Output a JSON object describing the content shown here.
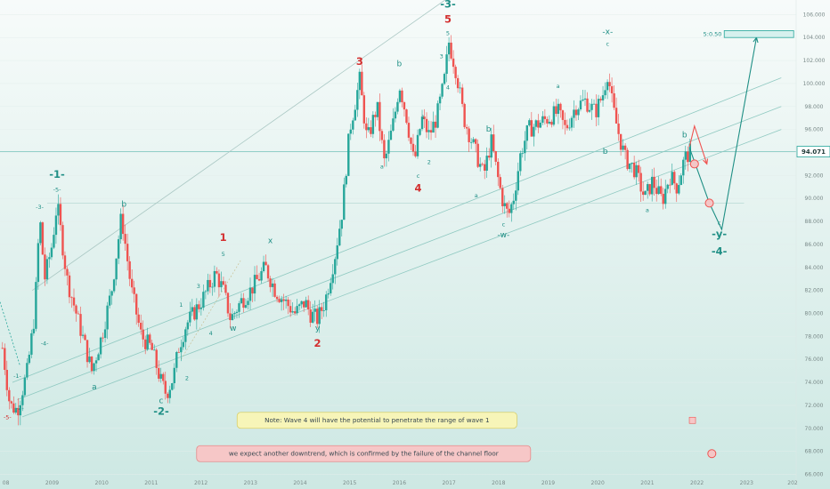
{
  "chart_data": {
    "type": "candlestick",
    "instrument_hint": "price chart with Elliott wave count",
    "x_ticks": [
      "08",
      "2009",
      "2010",
      "2011",
      "2012",
      "2013",
      "2014",
      "2015",
      "2016",
      "2017",
      "2018",
      "2019",
      "2020",
      "2021",
      "2022",
      "2023",
      "202"
    ],
    "y_ticks": [
      66.0,
      68.0,
      70.0,
      72.0,
      74.0,
      76.0,
      78.0,
      80.0,
      82.0,
      84.0,
      86.0,
      88.0,
      90.0,
      92.0,
      94.0,
      96.0,
      98.0,
      100.0,
      102.0,
      104.0,
      106.0
    ],
    "y_range": [
      65.5,
      106.8
    ],
    "x_range": [
      2007.95,
      2024.0
    ],
    "current_price": "94.071",
    "target_label": "5:0.50",
    "target_zone": [
      104.0,
      104.6
    ],
    "horizontal_levels": [
      89.6,
      94.071
    ],
    "path_points": [
      [
        2008.0,
        77.0
      ],
      [
        2008.15,
        72.0
      ],
      [
        2008.3,
        71.6
      ],
      [
        2008.5,
        75.0
      ],
      [
        2008.65,
        80.0
      ],
      [
        2008.75,
        88.5
      ],
      [
        2008.85,
        83.0
      ],
      [
        2009.0,
        86.0
      ],
      [
        2009.1,
        89.6
      ],
      [
        2009.3,
        83.0
      ],
      [
        2009.55,
        79.0
      ],
      [
        2009.8,
        75.0
      ],
      [
        2010.0,
        78.0
      ],
      [
        2010.2,
        82.0
      ],
      [
        2010.4,
        88.5
      ],
      [
        2010.6,
        82.0
      ],
      [
        2010.8,
        78.0
      ],
      [
        2011.0,
        77.0
      ],
      [
        2011.2,
        74.0
      ],
      [
        2011.3,
        73.0
      ],
      [
        2011.45,
        74.5
      ],
      [
        2011.55,
        77.0
      ],
      [
        2011.7,
        79.0
      ],
      [
        2011.85,
        80.0
      ],
      [
        2012.0,
        81.0
      ],
      [
        2012.3,
        83.5
      ],
      [
        2012.45,
        82.0
      ],
      [
        2012.6,
        79.5
      ],
      [
        2012.8,
        81.0
      ],
      [
        2013.0,
        82.0
      ],
      [
        2013.3,
        84.0
      ],
      [
        2013.5,
        82.0
      ],
      [
        2013.7,
        81.0
      ],
      [
        2013.9,
        80.0
      ],
      [
        2014.1,
        81.0
      ],
      [
        2014.2,
        80.0
      ],
      [
        2014.35,
        79.5
      ],
      [
        2014.5,
        81.0
      ],
      [
        2014.7,
        85.0
      ],
      [
        2014.85,
        89.0
      ],
      [
        2015.0,
        96.0
      ],
      [
        2015.2,
        100.3
      ],
      [
        2015.35,
        95.0
      ],
      [
        2015.55,
        98.0
      ],
      [
        2015.7,
        93.0
      ],
      [
        2015.9,
        97.0
      ],
      [
        2016.0,
        100.0
      ],
      [
        2016.15,
        97.0
      ],
      [
        2016.3,
        93.0
      ],
      [
        2016.45,
        97.0
      ],
      [
        2016.6,
        95.5
      ],
      [
        2016.75,
        97.0
      ],
      [
        2016.9,
        100.0
      ],
      [
        2017.0,
        103.6
      ],
      [
        2017.15,
        101.0
      ],
      [
        2017.3,
        97.0
      ],
      [
        2017.5,
        94.5
      ],
      [
        2017.7,
        92.0
      ],
      [
        2017.85,
        95.0
      ],
      [
        2018.0,
        91.5
      ],
      [
        2018.1,
        89.5
      ],
      [
        2018.2,
        88.5
      ],
      [
        2018.3,
        90.0
      ],
      [
        2018.45,
        94.0
      ],
      [
        2018.6,
        96.0
      ],
      [
        2018.8,
        96.5
      ],
      [
        2019.0,
        97.0
      ],
      [
        2019.2,
        97.5
      ],
      [
        2019.35,
        96.0
      ],
      [
        2019.55,
        98.0
      ],
      [
        2019.75,
        98.5
      ],
      [
        2019.95,
        97.5
      ],
      [
        2020.1,
        99.0
      ],
      [
        2020.2,
        101.0
      ],
      [
        2020.3,
        98.0
      ],
      [
        2020.4,
        96.0
      ],
      [
        2020.55,
        93.5
      ],
      [
        2020.75,
        92.5
      ],
      [
        2020.95,
        90.0
      ],
      [
        2021.1,
        91.5
      ],
      [
        2021.3,
        89.8
      ],
      [
        2021.45,
        92.0
      ],
      [
        2021.6,
        91.0
      ],
      [
        2021.75,
        93.5
      ],
      [
        2021.9,
        94.2
      ]
    ],
    "projections": [
      {
        "color": "red",
        "points": [
          [
            2021.85,
            94.5
          ],
          [
            2021.95,
            96.3
          ],
          [
            2022.2,
            93.0
          ]
        ]
      },
      {
        "color": "teal",
        "points": [
          [
            2021.85,
            94.4
          ],
          [
            2022.25,
            89.6
          ],
          [
            2022.5,
            87.3
          ],
          [
            2023.2,
            104.0
          ]
        ]
      }
    ],
    "channels": [
      [
        [
          2008.6,
          82.0
        ],
        [
          2017.0,
          107.5
        ]
      ],
      [
        [
          2008.2,
          74.0
        ],
        [
          2023.7,
          100.5
        ]
      ],
      [
        [
          2008.3,
          72.5
        ],
        [
          2023.7,
          98.0
        ]
      ],
      [
        [
          2008.4,
          71.0
        ],
        [
          2023.7,
          96.0
        ]
      ]
    ],
    "annotations": [
      {
        "text": "-3-",
        "x": 2008.75,
        "y": 89.1,
        "color": "teal",
        "size": "s"
      },
      {
        "text": "-1-",
        "x": 2009.1,
        "y": 91.8,
        "color": "teal",
        "size": "l"
      },
      {
        "text": "-5-",
        "x": 2009.1,
        "y": 90.6,
        "color": "teal",
        "size": "s"
      },
      {
        "text": "-4-",
        "x": 2008.85,
        "y": 77.2,
        "color": "teal",
        "size": "s"
      },
      {
        "text": "-1-",
        "x": 2008.3,
        "y": 74.4,
        "color": "teal",
        "size": "s"
      },
      {
        "text": "-2-",
        "x": 2008.35,
        "y": 71.6,
        "color": "teal",
        "size": "s"
      },
      {
        "text": "-5-",
        "x": 2008.1,
        "y": 70.8,
        "color": "red",
        "size": "s"
      },
      {
        "text": "a",
        "x": 2009.85,
        "y": 73.4,
        "color": "teal",
        "size": "m"
      },
      {
        "text": "b",
        "x": 2010.45,
        "y": 89.3,
        "color": "teal",
        "size": "m"
      },
      {
        "text": "c",
        "x": 2011.2,
        "y": 72.2,
        "color": "teal",
        "size": "m"
      },
      {
        "text": "-2-",
        "x": 2011.2,
        "y": 71.2,
        "color": "teal",
        "size": "l"
      },
      {
        "text": "1",
        "x": 2011.6,
        "y": 80.6,
        "color": "teal",
        "size": "s"
      },
      {
        "text": "2",
        "x": 2011.72,
        "y": 74.2,
        "color": "teal",
        "size": "s"
      },
      {
        "text": "3",
        "x": 2011.95,
        "y": 82.2,
        "color": "teal",
        "size": "s"
      },
      {
        "text": "4",
        "x": 2012.2,
        "y": 78.1,
        "color": "teal",
        "size": "s"
      },
      {
        "text": "5",
        "x": 2012.45,
        "y": 85.0,
        "color": "teal",
        "size": "s"
      },
      {
        "text": "1",
        "x": 2012.45,
        "y": 86.3,
        "color": "red",
        "size": "l"
      },
      {
        "text": "w",
        "x": 2012.65,
        "y": 78.5,
        "color": "teal",
        "size": "m"
      },
      {
        "text": "x",
        "x": 2013.4,
        "y": 86.1,
        "color": "teal",
        "size": "m"
      },
      {
        "text": "y",
        "x": 2014.35,
        "y": 78.5,
        "color": "teal",
        "size": "m"
      },
      {
        "text": "2",
        "x": 2014.35,
        "y": 77.1,
        "color": "red",
        "size": "l"
      },
      {
        "text": "3",
        "x": 2015.2,
        "y": 101.6,
        "color": "red",
        "size": "l"
      },
      {
        "text": "a",
        "x": 2015.65,
        "y": 92.6,
        "color": "teal",
        "size": "s"
      },
      {
        "text": "b",
        "x": 2016.0,
        "y": 101.5,
        "color": "teal",
        "size": "m"
      },
      {
        "text": "1",
        "x": 2016.48,
        "y": 96.9,
        "color": "teal",
        "size": "s"
      },
      {
        "text": "c",
        "x": 2016.38,
        "y": 91.8,
        "color": "teal",
        "size": "s"
      },
      {
        "text": "4",
        "x": 2016.38,
        "y": 90.6,
        "color": "red",
        "size": "l"
      },
      {
        "text": "2",
        "x": 2016.6,
        "y": 93.0,
        "color": "teal",
        "size": "s"
      },
      {
        "text": "3",
        "x": 2016.85,
        "y": 102.2,
        "color": "teal",
        "size": "s"
      },
      {
        "text": "4",
        "x": 2016.98,
        "y": 99.5,
        "color": "teal",
        "size": "s"
      },
      {
        "text": "5",
        "x": 2016.98,
        "y": 104.2,
        "color": "teal",
        "size": "s"
      },
      {
        "text": "5",
        "x": 2016.98,
        "y": 105.3,
        "color": "red",
        "size": "l"
      },
      {
        "text": "-3-",
        "x": 2016.98,
        "y": 106.6,
        "color": "teal",
        "size": "l"
      },
      {
        "text": "a",
        "x": 2017.55,
        "y": 90.1,
        "color": "teal",
        "size": "s"
      },
      {
        "text": "b",
        "x": 2017.8,
        "y": 95.8,
        "color": "teal",
        "size": "m"
      },
      {
        "text": "c",
        "x": 2018.1,
        "y": 87.6,
        "color": "teal",
        "size": "s"
      },
      {
        "text": "-w-",
        "x": 2018.1,
        "y": 86.6,
        "color": "teal",
        "size": "m"
      },
      {
        "text": "a",
        "x": 2019.2,
        "y": 99.6,
        "color": "teal",
        "size": "s"
      },
      {
        "text": "-x-",
        "x": 2020.2,
        "y": 104.3,
        "color": "teal",
        "size": "m"
      },
      {
        "text": "c",
        "x": 2020.2,
        "y": 103.3,
        "color": "teal",
        "size": "s"
      },
      {
        "text": "b",
        "x": 2020.15,
        "y": 93.9,
        "color": "teal",
        "size": "m"
      },
      {
        "text": "a",
        "x": 2021.0,
        "y": 88.8,
        "color": "teal",
        "size": "s"
      },
      {
        "text": "b",
        "x": 2021.75,
        "y": 95.3,
        "color": "teal",
        "size": "m"
      },
      {
        "text": "c",
        "x": 2022.45,
        "y": 87.7,
        "color": "teal",
        "size": "s"
      },
      {
        "text": "-y-",
        "x": 2022.45,
        "y": 86.6,
        "color": "teal",
        "size": "l"
      },
      {
        "text": "-4-",
        "x": 2022.45,
        "y": 85.1,
        "color": "teal",
        "size": "l"
      }
    ],
    "notes": [
      {
        "text": "Note: Wave 4 will have the potential to penetrate the range of wave 1",
        "x": 2015.55,
        "y": 70.7,
        "style": "yellow"
      },
      {
        "text": "we expect another downtrend, which is confirmed by the failure of the channel floor",
        "x": 2015.28,
        "y": 67.8,
        "style": "red"
      }
    ],
    "markers": [
      {
        "x": 2021.95,
        "y": 93.0
      },
      {
        "x": 2022.25,
        "y": 89.6
      },
      {
        "x": 2022.3,
        "y": 67.8
      }
    ]
  }
}
